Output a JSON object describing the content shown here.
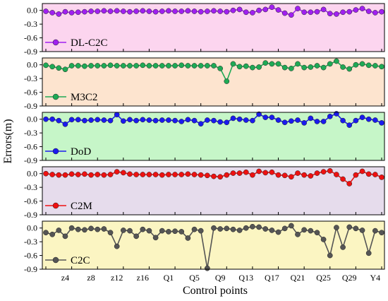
{
  "figure": {
    "xlabel": "Control points",
    "ylabel": "Errors(m)",
    "x_tick_labels": [
      "z4",
      "z8",
      "z12",
      "z16",
      "Q1",
      "Q5",
      "Q9",
      "Q13",
      "Q17",
      "Q21",
      "Q25",
      "Q29",
      "Y4"
    ],
    "y_tick_labels": [
      "0.0",
      "-0.3",
      "-0.6",
      "-0.9"
    ]
  },
  "chart_data": [
    {
      "type": "line",
      "series": [
        {
          "name": "DL-C2C",
          "color": "#a020f0",
          "background": "#fcd5ef",
          "values": [
            -0.02,
            -0.05,
            -0.08,
            -0.03,
            -0.05,
            -0.04,
            -0.03,
            -0.02,
            -0.02,
            -0.01,
            -0.02,
            -0.01,
            -0.02,
            -0.03,
            -0.02,
            -0.01,
            -0.02,
            -0.03,
            -0.02,
            -0.01,
            -0.02,
            -0.02,
            -0.01,
            -0.02,
            -0.03,
            -0.02,
            -0.01,
            -0.02,
            -0.03,
            0.0,
            0.02,
            -0.04,
            -0.05,
            0.0,
            0.02,
            0.07,
            0.01,
            -0.06,
            -0.1,
            0.04,
            -0.04,
            -0.04,
            -0.03,
            0.02,
            -0.07,
            -0.08,
            -0.04,
            -0.03,
            0.01,
            0.04,
            -0.02,
            -0.05,
            -0.03
          ]
        }
      ],
      "ylim": [
        -0.9,
        0.15
      ],
      "legend": "lower-left"
    },
    {
      "type": "line",
      "series": [
        {
          "name": "M3C2",
          "color": "#1faa55",
          "background": "#fde4cf",
          "values": [
            -0.01,
            -0.04,
            -0.07,
            -0.1,
            -0.02,
            -0.02,
            -0.03,
            -0.02,
            -0.02,
            -0.02,
            -0.01,
            -0.02,
            -0.02,
            -0.02,
            -0.02,
            -0.01,
            -0.02,
            -0.02,
            -0.02,
            -0.02,
            -0.02,
            -0.01,
            -0.02,
            -0.02,
            -0.02,
            -0.02,
            -0.02,
            -0.08,
            -0.36,
            0.02,
            -0.04,
            -0.03,
            -0.06,
            -0.05,
            0.04,
            0.02,
            0.02,
            -0.06,
            -0.08,
            0.02,
            -0.06,
            -0.05,
            -0.02,
            -0.06,
            0.02,
            0.08,
            -0.05,
            -0.09,
            0.0,
            0.02,
            -0.01,
            -0.02,
            -0.04
          ]
        }
      ],
      "ylim": [
        -0.9,
        0.15
      ],
      "legend": "lower-left"
    },
    {
      "type": "line",
      "series": [
        {
          "name": "DoD",
          "color": "#1a1aee",
          "background": "#c6f6c8",
          "values": [
            0.0,
            0.0,
            -0.03,
            -0.11,
            -0.01,
            -0.01,
            -0.03,
            -0.02,
            -0.01,
            -0.02,
            -0.03,
            0.1,
            -0.04,
            -0.01,
            -0.03,
            -0.01,
            -0.02,
            -0.03,
            -0.02,
            -0.02,
            -0.03,
            -0.05,
            -0.01,
            -0.03,
            -0.1,
            -0.02,
            -0.03,
            -0.06,
            -0.07,
            0.02,
            0.0,
            -0.02,
            -0.03,
            0.11,
            0.04,
            0.04,
            -0.02,
            -0.07,
            -0.04,
            -0.02,
            -0.08,
            0.02,
            -0.05,
            -0.05,
            0.06,
            0.12,
            -0.03,
            -0.13,
            -0.03,
            0.04,
            0.0,
            -0.02,
            -0.08
          ]
        }
      ],
      "ylim": [
        -0.9,
        0.15
      ],
      "legend": "lower-left"
    },
    {
      "type": "line",
      "series": [
        {
          "name": "C2M",
          "color": "#ee1111",
          "background": "#e6dcec",
          "values": [
            0.0,
            -0.02,
            -0.03,
            -0.03,
            -0.01,
            -0.02,
            -0.01,
            -0.03,
            -0.02,
            -0.03,
            -0.02,
            0.04,
            0.02,
            -0.01,
            -0.02,
            -0.02,
            -0.02,
            -0.02,
            -0.03,
            -0.02,
            -0.02,
            -0.02,
            -0.01,
            -0.02,
            -0.03,
            -0.04,
            -0.06,
            -0.07,
            -0.03,
            0.01,
            0.01,
            0.03,
            -0.03,
            0.05,
            0.02,
            0.03,
            -0.03,
            -0.04,
            -0.07,
            0.01,
            -0.03,
            -0.05,
            0.01,
            0.04,
            0.06,
            -0.02,
            -0.12,
            -0.22,
            -0.03,
            0.05,
            -0.01,
            -0.02,
            -0.08
          ]
        }
      ],
      "ylim": [
        -0.9,
        0.15
      ],
      "legend": "lower-left"
    },
    {
      "type": "line",
      "series": [
        {
          "name": "C2C",
          "color": "#555555",
          "background": "#fbf5c2",
          "values": [
            -0.1,
            -0.14,
            -0.05,
            -0.18,
            0.0,
            -0.03,
            -0.04,
            -0.01,
            -0.03,
            -0.02,
            -0.1,
            -0.4,
            -0.05,
            -0.06,
            -0.18,
            -0.03,
            -0.06,
            -0.21,
            -0.06,
            -0.08,
            -0.07,
            -0.08,
            -0.22,
            -0.03,
            -0.06,
            -0.88,
            0.0,
            -0.02,
            -0.01,
            -0.03,
            -0.05,
            0.0,
            0.03,
            0.02,
            -0.02,
            -0.05,
            -0.09,
            -0.01,
            0.05,
            -0.14,
            -0.04,
            -0.06,
            -0.1,
            -0.25,
            -0.6,
            0.01,
            -0.42,
            0.02,
            -0.01,
            -0.05,
            -0.55,
            -0.06,
            -0.1
          ]
        }
      ],
      "ylim": [
        -0.9,
        0.15
      ],
      "legend": "lower-left"
    }
  ]
}
